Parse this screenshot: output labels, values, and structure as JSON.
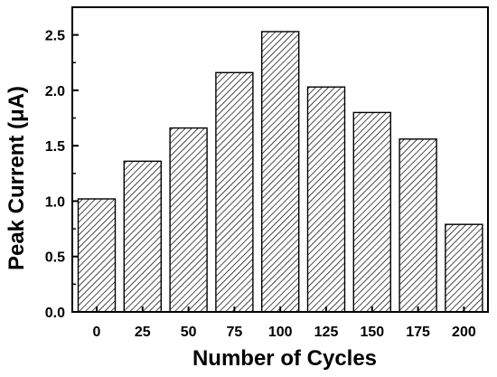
{
  "chart_data": {
    "type": "bar",
    "title": "",
    "xlabel": "Number of Cycles",
    "ylabel": "Peak Current (μA)",
    "categories": [
      "0",
      "25",
      "50",
      "75",
      "100",
      "125",
      "150",
      "175",
      "200"
    ],
    "values": [
      1.02,
      1.36,
      1.66,
      2.16,
      2.53,
      2.03,
      1.8,
      1.56,
      0.79
    ],
    "ylim": [
      0.0,
      2.75
    ],
    "yticks": [
      "0.0",
      "0.5",
      "1.0",
      "1.5",
      "2.0",
      "2.5"
    ],
    "ytick_values": [
      0.0,
      0.5,
      1.0,
      1.5,
      2.0,
      2.5
    ],
    "grid": false,
    "legend": "none",
    "bar_fill": "diagonal-hatch",
    "colors": {
      "bar_edge": "#000000",
      "hatch": "#000000",
      "background": "#ffffff",
      "axis": "#000000"
    }
  }
}
